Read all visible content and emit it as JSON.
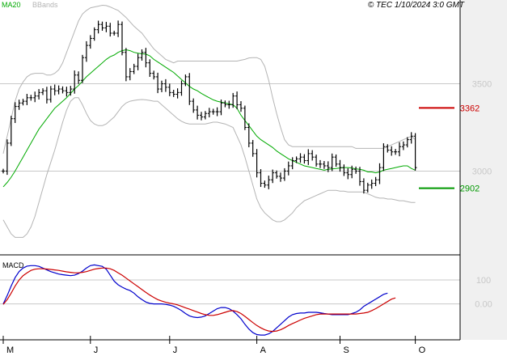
{
  "header": {
    "legend_ma": "MA20",
    "legend_bb": "BBands",
    "copyright": "© TEC 1/10/2024 3:0 GMT"
  },
  "colors": {
    "background": "#ffffff",
    "gutter": "#f0f0f0",
    "grid": "#c8c8c8",
    "price": "#000000",
    "ma20": "#00aa00",
    "bbands": "#b4b4b4",
    "resistance": "#cc0000",
    "support": "#009900",
    "macd": "#0000cc",
    "signal": "#cc0000",
    "axis_text": "#c8c8c8"
  },
  "chart_data": [
    {
      "type": "ohlc",
      "panel": "price",
      "y_ticks": [
        3000,
        3500
      ],
      "y_tick_labels": [
        "3000",
        "3500"
      ],
      "ylim": [
        2520,
        3980
      ],
      "x_ticks": [
        {
          "index": 0,
          "label": "M"
        },
        {
          "index": 22,
          "label": "J"
        },
        {
          "index": 42,
          "label": "J"
        },
        {
          "index": 64,
          "label": "A"
        },
        {
          "index": 85,
          "label": "S"
        },
        {
          "index": 104,
          "label": "O"
        }
      ],
      "levels": [
        {
          "name": "resistance",
          "value": 3362,
          "label": "3362"
        },
        {
          "name": "support",
          "value": 2902,
          "label": "2902"
        }
      ],
      "close": [
        3000,
        3160,
        3300,
        3370,
        3390,
        3400,
        3420,
        3420,
        3430,
        3450,
        3460,
        3410,
        3470,
        3460,
        3470,
        3460,
        3450,
        3470,
        3550,
        3520,
        3650,
        3720,
        3760,
        3810,
        3840,
        3820,
        3830,
        3790,
        3790,
        3840,
        3680,
        3540,
        3570,
        3600,
        3650,
        3680,
        3620,
        3560,
        3540,
        3470,
        3500,
        3480,
        3450,
        3440,
        3450,
        3500,
        3540,
        3400,
        3350,
        3320,
        3310,
        3330,
        3340,
        3340,
        3340,
        3390,
        3380,
        3380,
        3430,
        3380,
        3360,
        3250,
        3160,
        3100,
        2990,
        2930,
        2920,
        2950,
        2990,
        2970,
        2960,
        3000,
        3030,
        3060,
        3070,
        3080,
        3060,
        3100,
        3080,
        3040,
        3040,
        3030,
        3020,
        3080,
        3040,
        3020,
        2990,
        2980,
        3010,
        3000,
        2940,
        2890,
        2920,
        2930,
        2950,
        3020,
        3140,
        3120,
        3110,
        3110,
        3140,
        3150,
        3180,
        3200,
        3020
      ],
      "series": [
        {
          "name": "MA20",
          "role": "moving-average",
          "values": [
            2910,
            2935,
            2965,
            3000,
            3040,
            3080,
            3120,
            3160,
            3200,
            3240,
            3270,
            3300,
            3330,
            3360,
            3380,
            3400,
            3420,
            3445,
            3470,
            3490,
            3515,
            3540,
            3560,
            3580,
            3600,
            3620,
            3640,
            3655,
            3665,
            3680,
            3690,
            3695,
            3690,
            3680,
            3675,
            3672,
            3670,
            3660,
            3640,
            3625,
            3610,
            3595,
            3580,
            3565,
            3545,
            3525,
            3505,
            3485,
            3470,
            3460,
            3445,
            3432,
            3420,
            3408,
            3400,
            3395,
            3390,
            3385,
            3380,
            3360,
            3320,
            3290,
            3260,
            3230,
            3200,
            3180,
            3165,
            3150,
            3135,
            3115,
            3100,
            3085,
            3070,
            3060,
            3050,
            3040,
            3030,
            3025,
            3020,
            3015,
            3010,
            3005,
            3010,
            3012,
            3015,
            3018,
            3020,
            3020,
            3018,
            3012,
            3010,
            3005,
            2995,
            2995,
            2990,
            2995,
            3005,
            3010,
            3015,
            3020,
            3025,
            3030,
            3030,
            3015,
            3005
          ]
        },
        {
          "name": "BBands upper",
          "role": "band",
          "values": [
            3100,
            3200,
            3300,
            3400,
            3470,
            3510,
            3540,
            3555,
            3560,
            3560,
            3560,
            3550,
            3550,
            3560,
            3580,
            3620,
            3680,
            3740,
            3800,
            3860,
            3900,
            3920,
            3935,
            3940,
            3945,
            3950,
            3948,
            3940,
            3930,
            3920,
            3900,
            3880,
            3855,
            3830,
            3810,
            3790,
            3760,
            3730,
            3700,
            3680,
            3660,
            3640,
            3630,
            3620,
            3630,
            3630,
            3630,
            3630,
            3630,
            3630,
            3630,
            3630,
            3630,
            3630,
            3630,
            3630,
            3630,
            3630,
            3630,
            3630,
            3635,
            3640,
            3648,
            3650,
            3650,
            3640,
            3600,
            3520,
            3420,
            3330,
            3250,
            3180,
            3150,
            3140,
            3140,
            3140,
            3140,
            3140,
            3140,
            3140,
            3140,
            3140,
            3140,
            3140,
            3140,
            3140,
            3140,
            3140,
            3140,
            3130,
            3130,
            3130,
            3130,
            3130,
            3130,
            3130,
            3130,
            3140,
            3150,
            3160,
            3170,
            3180,
            3190,
            3200,
            3180
          ]
        },
        {
          "name": "BBands lower",
          "role": "band",
          "values": [
            2720,
            2680,
            2640,
            2620,
            2620,
            2620,
            2640,
            2680,
            2740,
            2820,
            2900,
            2980,
            3050,
            3120,
            3200,
            3280,
            3350,
            3400,
            3420,
            3420,
            3380,
            3330,
            3290,
            3270,
            3260,
            3260,
            3270,
            3290,
            3310,
            3340,
            3370,
            3390,
            3400,
            3405,
            3408,
            3410,
            3408,
            3405,
            3400,
            3400,
            3380,
            3360,
            3340,
            3320,
            3300,
            3285,
            3275,
            3270,
            3270,
            3270,
            3270,
            3270,
            3275,
            3280,
            3280,
            3275,
            3270,
            3260,
            3250,
            3200,
            3150,
            3080,
            3000,
            2920,
            2840,
            2790,
            2760,
            2740,
            2720,
            2710,
            2710,
            2720,
            2740,
            2760,
            2790,
            2810,
            2830,
            2840,
            2850,
            2860,
            2870,
            2880,
            2890,
            2890,
            2890,
            2885,
            2885,
            2880,
            2880,
            2880,
            2880,
            2880,
            2870,
            2860,
            2850,
            2845,
            2845,
            2840,
            2840,
            2835,
            2830,
            2830,
            2825,
            2820,
            2820
          ]
        }
      ]
    },
    {
      "type": "line",
      "panel": "macd",
      "title": "MACD",
      "y_ticks": [
        0,
        100
      ],
      "y_tick_labels": [
        "0.00",
        "100"
      ],
      "ylim": [
        -150,
        205
      ],
      "series": [
        {
          "name": "MACD",
          "role": "macd",
          "values": [
            0,
            35,
            75,
            110,
            135,
            150,
            158,
            160,
            160,
            157,
            150,
            142,
            135,
            130,
            125,
            122,
            120,
            118,
            120,
            127,
            137,
            150,
            160,
            163,
            160,
            157,
            145,
            120,
            95,
            80,
            70,
            62,
            56,
            45,
            30,
            18,
            8,
            2,
            0,
            0,
            0,
            -2,
            -5,
            -10,
            -18,
            -28,
            -40,
            -50,
            -55,
            -57,
            -55,
            -50,
            -40,
            -30,
            -20,
            -15,
            -15,
            -20,
            -30,
            -45,
            -62,
            -85,
            -105,
            -120,
            -128,
            -130,
            -130,
            -125,
            -115,
            -100,
            -85,
            -70,
            -55,
            -45,
            -40,
            -38,
            -38,
            -35,
            -35,
            -35,
            -37,
            -40,
            -42,
            -45,
            -45,
            -45,
            -45,
            -45,
            -40,
            -35,
            -25,
            -10,
            0,
            10,
            20,
            30,
            40,
            45
          ]
        },
        {
          "name": "Signal",
          "role": "signal",
          "values": [
            -2,
            18,
            45,
            75,
            100,
            118,
            130,
            140,
            145,
            147,
            147,
            146,
            144,
            142,
            140,
            137,
            134,
            132,
            130,
            130,
            132,
            135,
            140,
            145,
            148,
            150,
            150,
            147,
            140,
            130,
            120,
            108,
            96,
            84,
            72,
            60,
            48,
            37,
            27,
            18,
            12,
            7,
            3,
            0,
            -4,
            -10,
            -16,
            -22,
            -28,
            -34,
            -40,
            -45,
            -48,
            -48,
            -45,
            -40,
            -35,
            -30,
            -28,
            -32,
            -40,
            -52,
            -65,
            -78,
            -90,
            -100,
            -108,
            -113,
            -115,
            -113,
            -108,
            -100,
            -90,
            -82,
            -75,
            -67,
            -60,
            -55,
            -50,
            -45,
            -42,
            -42,
            -42,
            -42,
            -42,
            -42,
            -42,
            -42,
            -42,
            -42,
            -40,
            -38,
            -35,
            -28,
            -20,
            -10,
            0,
            10,
            20,
            25
          ]
        }
      ]
    }
  ]
}
